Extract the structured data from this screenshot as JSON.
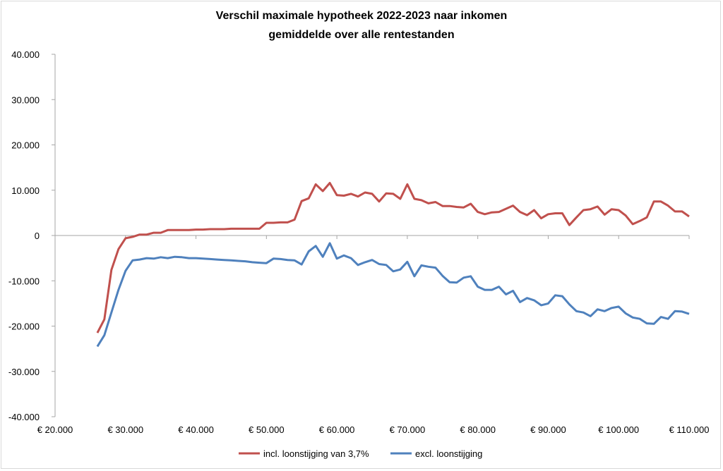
{
  "chart_data": {
    "type": "line",
    "title": "Verschil maximale hypotheek 2022-2023 naar inkomen",
    "subtitle": "gemiddelde over alle rentestanden",
    "xlabel": "",
    "ylabel": "",
    "xlim": [
      20000,
      110000
    ],
    "ylim": [
      -40000,
      40000
    ],
    "x_ticks": [
      20000,
      30000,
      40000,
      50000,
      60000,
      70000,
      80000,
      90000,
      100000,
      110000
    ],
    "x_tick_labels": [
      "€ 20.000",
      "€ 30.000",
      "€ 40.000",
      "€ 50.000",
      "€ 60.000",
      "€ 70.000",
      "€ 80.000",
      "€ 90.000",
      "€ 100.000",
      "€ 110.000"
    ],
    "y_ticks": [
      40000,
      30000,
      20000,
      10000,
      0,
      -10000,
      -20000,
      -30000,
      -40000
    ],
    "y_tick_labels": [
      "40.000",
      "30.000",
      "20.000",
      "10.000",
      "0",
      "-10.000",
      "-20.000",
      "-30.000",
      "-40.000"
    ],
    "grid": false,
    "legend_position": "bottom",
    "x": [
      26000,
      27000,
      28000,
      29000,
      30000,
      31000,
      32000,
      33000,
      34000,
      35000,
      36000,
      37000,
      38000,
      39000,
      40000,
      41000,
      42000,
      43000,
      44000,
      45000,
      46000,
      47000,
      48000,
      49000,
      50000,
      51000,
      52000,
      53000,
      54000,
      55000,
      56000,
      57000,
      58000,
      59000,
      60000,
      61000,
      62000,
      63000,
      64000,
      65000,
      66000,
      67000,
      68000,
      69000,
      70000,
      71000,
      72000,
      73000,
      74000,
      75000,
      76000,
      77000,
      78000,
      79000,
      80000,
      81000,
      82000,
      83000,
      84000,
      85000,
      86000,
      87000,
      88000,
      89000,
      90000,
      91000,
      92000,
      93000,
      94000,
      95000,
      96000,
      97000,
      98000,
      99000,
      100000,
      101000,
      102000,
      103000,
      104000,
      105000,
      106000,
      107000,
      108000,
      109000,
      110000
    ],
    "series": [
      {
        "name": "incl. loonstijging van 3,7%",
        "color": "#c0504d",
        "values": [
          -21500,
          -18500,
          -7600,
          -3000,
          -600,
          -300,
          200,
          200,
          600,
          600,
          1200,
          1200,
          1200,
          1200,
          1300,
          1300,
          1400,
          1400,
          1400,
          1500,
          1500,
          1500,
          1500,
          1500,
          2800,
          2800,
          2900,
          2900,
          3500,
          7600,
          8200,
          11300,
          9800,
          11600,
          8900,
          8800,
          9200,
          8600,
          9500,
          9200,
          7500,
          9300,
          9200,
          8100,
          11300,
          8100,
          7800,
          7100,
          7400,
          6500,
          6500,
          6300,
          6200,
          7000,
          5200,
          4700,
          5100,
          5200,
          5900,
          6600,
          5200,
          4500,
          5600,
          3800,
          4700,
          4900,
          4900,
          2300,
          4000,
          5600,
          5800,
          6400,
          4600,
          5800,
          5600,
          4400,
          2500,
          3200,
          4000,
          7500,
          7500,
          6600,
          5300,
          5300,
          4200
        ]
      },
      {
        "name": "excl. loonstijging",
        "color": "#4f81bd",
        "values": [
          -24500,
          -22000,
          -17000,
          -12000,
          -7800,
          -5500,
          -5300,
          -5000,
          -5100,
          -4800,
          -5000,
          -4700,
          -4800,
          -5000,
          -5000,
          -5100,
          -5200,
          -5300,
          -5400,
          -5500,
          -5600,
          -5700,
          -5900,
          -6000,
          -6100,
          -5100,
          -5200,
          -5400,
          -5500,
          -6400,
          -3500,
          -2300,
          -4700,
          -1700,
          -5100,
          -4400,
          -5000,
          -6500,
          -5900,
          -5400,
          -6300,
          -6500,
          -7900,
          -7500,
          -5800,
          -9000,
          -6600,
          -6900,
          -7100,
          -8900,
          -10300,
          -10400,
          -9300,
          -9000,
          -11300,
          -12000,
          -12000,
          -11300,
          -13000,
          -12200,
          -14700,
          -13800,
          -14300,
          -15400,
          -15000,
          -13200,
          -13400,
          -15200,
          -16700,
          -17000,
          -17800,
          -16300,
          -16700,
          -16000,
          -15700,
          -17200,
          -18100,
          -18400,
          -19400,
          -19500,
          -18000,
          -18400,
          -16700,
          -16800,
          -17300
        ]
      }
    ]
  }
}
